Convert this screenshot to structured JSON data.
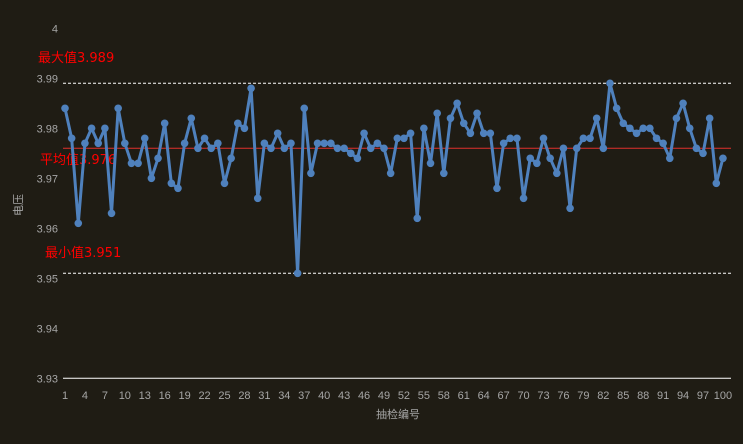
{
  "chart_data": {
    "type": "line",
    "title": "",
    "xlabel": "抽检编号",
    "ylabel": "电压",
    "ylim": [
      3.93,
      4
    ],
    "yticks": [
      "3.93",
      "3.94",
      "3.95",
      "3.96",
      "3.97",
      "3.98",
      "3.99",
      "4"
    ],
    "xticks": [
      "1",
      "4",
      "7",
      "10",
      "13",
      "16",
      "19",
      "22",
      "25",
      "28",
      "31",
      "34",
      "37",
      "40",
      "43",
      "46",
      "49",
      "52",
      "55",
      "58",
      "61",
      "64",
      "67",
      "70",
      "73",
      "76",
      "79",
      "82",
      "85",
      "88",
      "91",
      "94",
      "97",
      "100"
    ],
    "grid": false,
    "colors": {
      "series": "#4f81bd",
      "mean_line": "#e0302c",
      "limit_lines": "#ffffff",
      "annotation": "#ff0000"
    },
    "values": [
      3.984,
      3.978,
      3.961,
      3.977,
      3.98,
      3.977,
      3.98,
      3.963,
      3.984,
      3.977,
      3.973,
      3.973,
      3.978,
      3.97,
      3.974,
      3.981,
      3.969,
      3.968,
      3.977,
      3.982,
      3.976,
      3.978,
      3.976,
      3.977,
      3.969,
      3.974,
      3.981,
      3.98,
      3.988,
      3.966,
      3.977,
      3.976,
      3.979,
      3.976,
      3.977,
      3.951,
      3.984,
      3.971,
      3.977,
      3.977,
      3.977,
      3.976,
      3.976,
      3.975,
      3.974,
      3.979,
      3.976,
      3.977,
      3.976,
      3.971,
      3.978,
      3.978,
      3.979,
      3.962,
      3.98,
      3.973,
      3.983,
      3.971,
      3.982,
      3.985,
      3.981,
      3.979,
      3.983,
      3.979,
      3.979,
      3.968,
      3.977,
      3.978,
      3.978,
      3.966,
      3.974,
      3.973,
      3.978,
      3.974,
      3.971,
      3.976,
      3.964,
      3.976,
      3.978,
      3.978,
      3.982,
      3.976,
      3.989,
      3.984,
      3.981,
      3.98,
      3.979,
      3.98,
      3.98,
      3.978,
      3.977,
      3.974,
      3.982,
      3.985,
      3.98,
      3.976,
      3.975,
      3.982,
      3.969,
      3.974
    ],
    "reference_lines": [
      {
        "label": "最大值3.989",
        "value": 3.989,
        "style": "dashed"
      },
      {
        "label": "平均值3.976",
        "value": 3.976,
        "style": "solid"
      },
      {
        "label": "最小值3.951",
        "value": 3.951,
        "style": "dashed"
      }
    ]
  }
}
